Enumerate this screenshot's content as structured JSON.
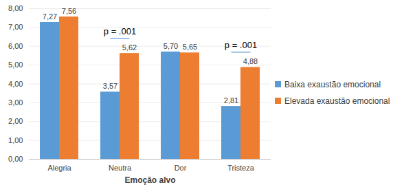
{
  "chart_data": {
    "type": "bar",
    "categories": [
      "Alegria",
      "Neutra",
      "Dor",
      "Tristeza"
    ],
    "series": [
      {
        "name": "Baixa exaustão emocional",
        "color": "#5B9BD5",
        "values": [
          7.27,
          3.57,
          5.7,
          2.81
        ],
        "value_labels": [
          "7,27",
          "3,57",
          "5,70",
          "2,81"
        ]
      },
      {
        "name": "Elevada exaustão emocional",
        "color": "#ED7D31",
        "values": [
          7.56,
          5.62,
          5.65,
          4.88
        ],
        "value_labels": [
          "7,56",
          "5,62",
          "5,65",
          "4,88"
        ]
      }
    ],
    "xlabel": "Emoção alvo",
    "ylim": [
      0,
      8
    ],
    "yticks": [
      {
        "value": 0,
        "label": "0,00"
      },
      {
        "value": 1,
        "label": "1,00"
      },
      {
        "value": 2,
        "label": "2,00"
      },
      {
        "value": 3,
        "label": "3,00"
      },
      {
        "value": 4,
        "label": "4,00"
      },
      {
        "value": 5,
        "label": "5,00"
      },
      {
        "value": 6,
        "label": "6,00"
      },
      {
        "value": 7,
        "label": "7,00"
      },
      {
        "value": 8,
        "label": "8,00"
      }
    ],
    "grid": true,
    "legend": "right",
    "data_labels": true,
    "annotations": [
      {
        "text": "p = .001",
        "category": "Neutra"
      },
      {
        "text": "p = .001",
        "category": "Tristeza"
      }
    ]
  }
}
